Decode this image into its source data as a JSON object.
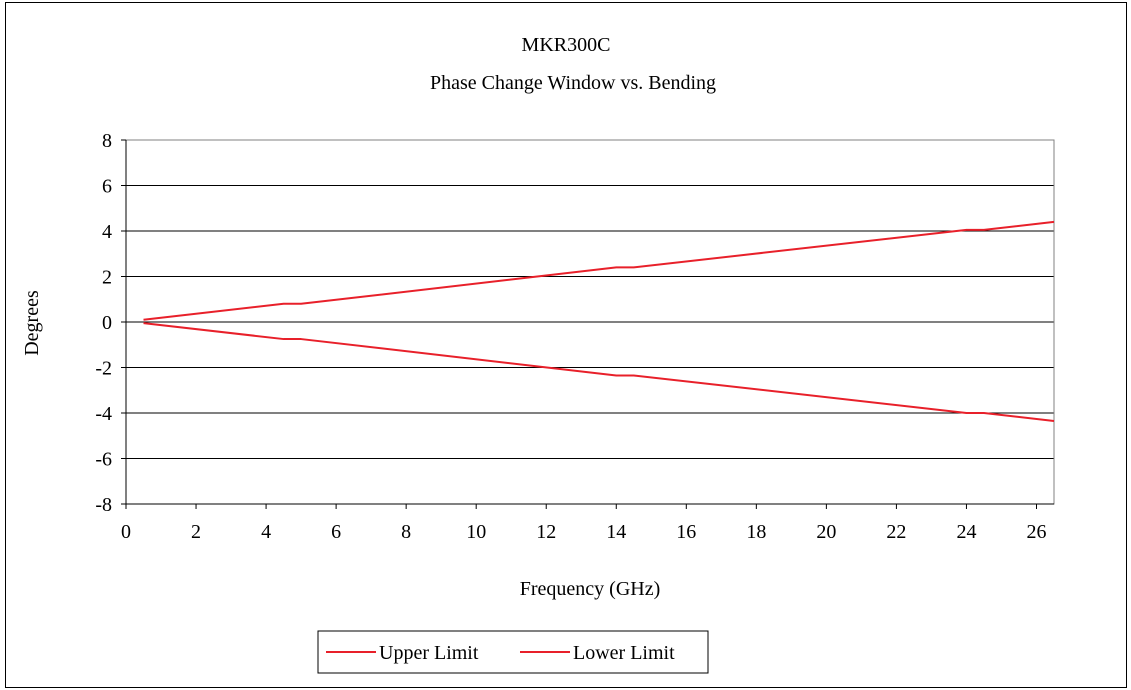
{
  "chart_data": {
    "type": "line",
    "title": "MKR300C",
    "subtitle": "Phase Change Window vs. Bending",
    "xlabel": "Frequency (GHz)",
    "ylabel": "Degrees",
    "xlim": [
      0,
      26.5
    ],
    "ylim": [
      -8,
      8
    ],
    "xticks": [
      0,
      2,
      4,
      6,
      8,
      10,
      12,
      14,
      16,
      18,
      20,
      22,
      24,
      26
    ],
    "yticks": [
      8,
      6,
      4,
      2,
      0,
      -2,
      -4,
      -6,
      -8
    ],
    "grid": "horizontal",
    "legend_position": "bottom",
    "series": [
      {
        "name": "Upper Limit",
        "color": "#e8202a",
        "x": [
          0.5,
          4.5,
          5.0,
          14.0,
          14.5,
          24.0,
          24.5,
          26.5
        ],
        "y": [
          0.1,
          0.8,
          0.8,
          2.4,
          2.4,
          4.05,
          4.05,
          4.4
        ]
      },
      {
        "name": "Lower Limit",
        "color": "#e8202a",
        "x": [
          0.5,
          4.5,
          5.0,
          14.0,
          14.5,
          24.0,
          24.5,
          26.5
        ],
        "y": [
          -0.05,
          -0.75,
          -0.75,
          -2.35,
          -2.35,
          -4.0,
          -4.0,
          -4.35
        ]
      }
    ]
  }
}
